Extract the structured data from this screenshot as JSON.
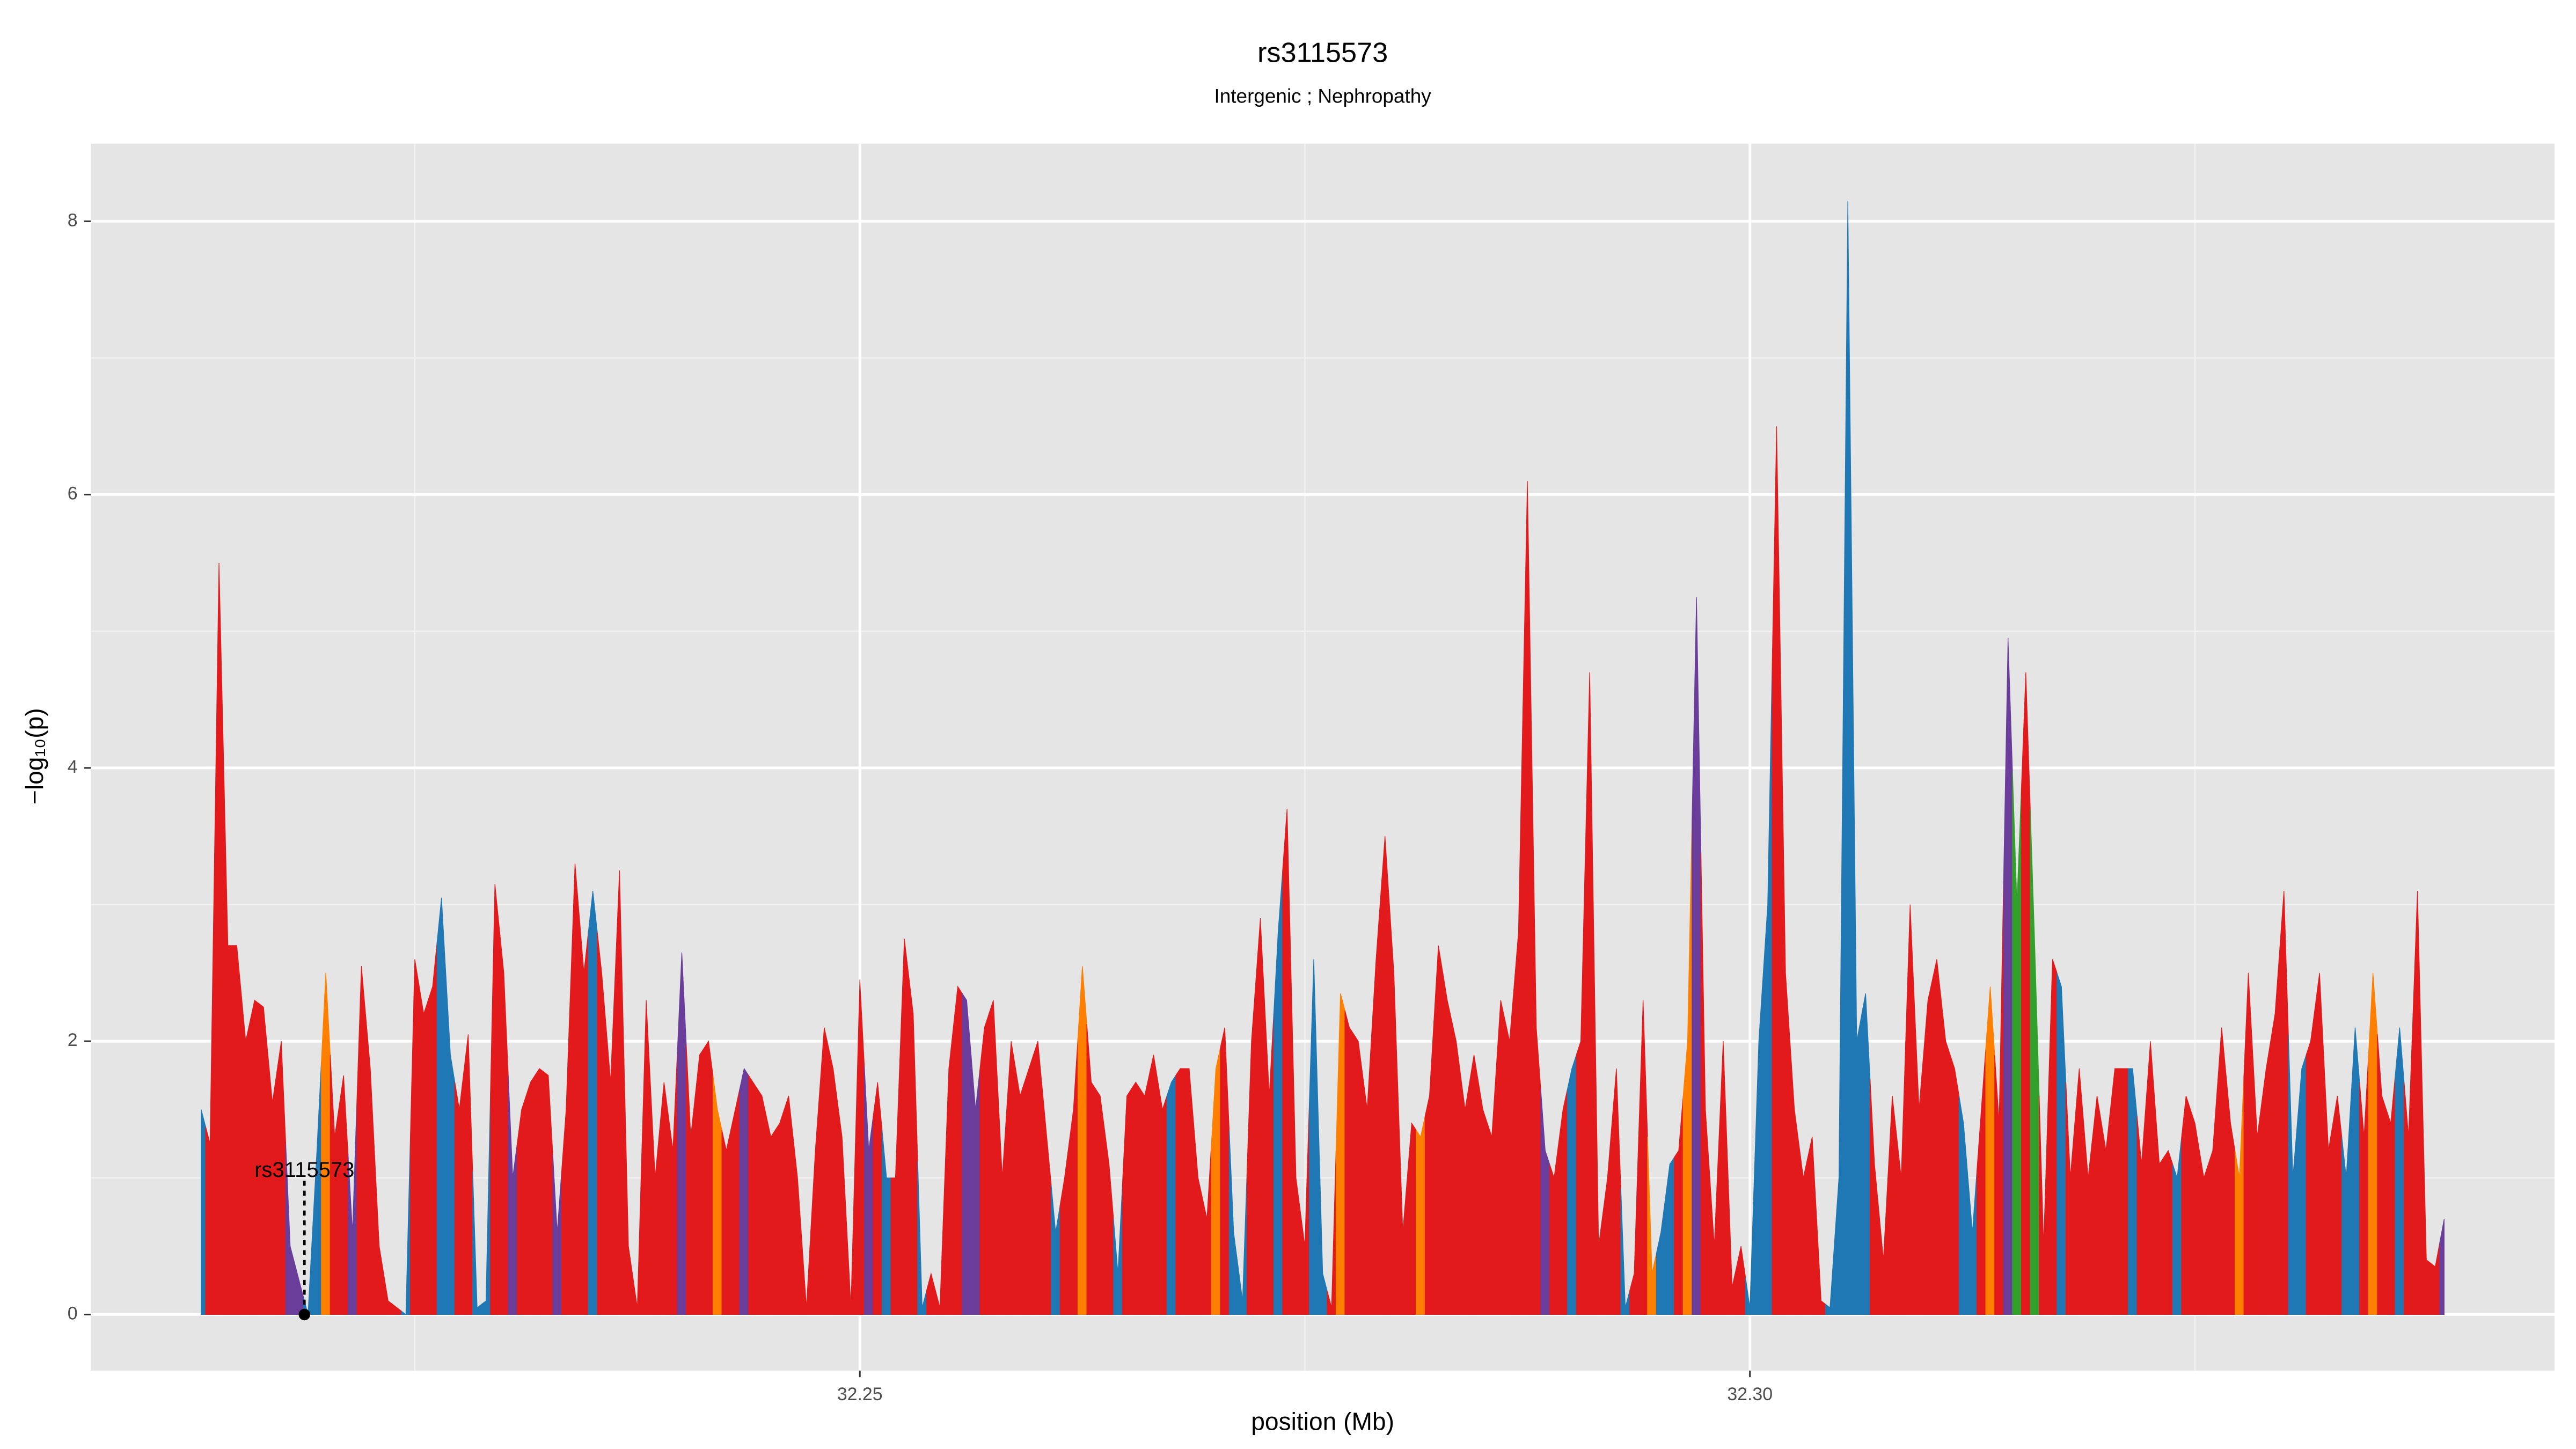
{
  "chart_data": {
    "type": "area",
    "title": "rs3115573",
    "subtitle": "Intergenic ; Nephropathy",
    "xlabel": "position (Mb)",
    "ylabel": "−log₁₀(p)",
    "xlim": [
      32.2068,
      32.3452
    ],
    "ylim": [
      -0.41,
      8.568
    ],
    "xticks": [
      {
        "value": 32.25,
        "label": "32.25"
      },
      {
        "value": 32.3,
        "label": "32.30"
      }
    ],
    "yticks": [
      0,
      2,
      4,
      6,
      8
    ],
    "xminor": [
      32.225,
      32.275,
      32.325
    ],
    "yminor": [
      1,
      3,
      5,
      7
    ],
    "grid": true,
    "annotation": {
      "text": "rs3115573",
      "x": 32.2188,
      "y": 0
    },
    "x": [
      32.213,
      32.2135,
      32.214,
      32.2145,
      32.215,
      32.2155,
      32.216,
      32.2165,
      32.217,
      32.2175,
      32.218,
      32.2185,
      32.219,
      32.2195,
      32.22,
      32.2205,
      32.221,
      32.2215,
      32.222,
      32.2225,
      32.223,
      32.2235,
      32.224,
      32.2245,
      32.225,
      32.2255,
      32.226,
      32.2265,
      32.227,
      32.2275,
      32.228,
      32.2285,
      32.229,
      32.2295,
      32.23,
      32.2305,
      32.231,
      32.2315,
      32.232,
      32.2325,
      32.233,
      32.2335,
      32.234,
      32.2345,
      32.235,
      32.2355,
      32.236,
      32.2365,
      32.237,
      32.2375,
      32.238,
      32.2385,
      32.239,
      32.2395,
      32.24,
      32.2405,
      32.241,
      32.2415,
      32.242,
      32.2425,
      32.243,
      32.2435,
      32.244,
      32.2445,
      32.245,
      32.2455,
      32.246,
      32.2465,
      32.247,
      32.2475,
      32.248,
      32.2485,
      32.249,
      32.2495,
      32.25,
      32.2505,
      32.251,
      32.2515,
      32.252,
      32.2525,
      32.253,
      32.2535,
      32.254,
      32.2545,
      32.255,
      32.2555,
      32.256,
      32.2565,
      32.257,
      32.2575,
      32.258,
      32.2585,
      32.259,
      32.2595,
      32.26,
      32.2605,
      32.261,
      32.2615,
      32.262,
      32.2625,
      32.263,
      32.2635,
      32.264,
      32.2645,
      32.265,
      32.2655,
      32.266,
      32.2665,
      32.267,
      32.2675,
      32.268,
      32.2685,
      32.269,
      32.2695,
      32.27,
      32.2705,
      32.271,
      32.2715,
      32.272,
      32.2725,
      32.273,
      32.2735,
      32.274,
      32.2745,
      32.275,
      32.2755,
      32.276,
      32.2765,
      32.277,
      32.2775,
      32.278,
      32.2785,
      32.279,
      32.2795,
      32.28,
      32.2805,
      32.281,
      32.2815,
      32.282,
      32.2825,
      32.283,
      32.2835,
      32.284,
      32.2845,
      32.285,
      32.2855,
      32.286,
      32.2865,
      32.287,
      32.2875,
      32.288,
      32.2885,
      32.289,
      32.2895,
      32.29,
      32.2905,
      32.291,
      32.2915,
      32.292,
      32.2925,
      32.293,
      32.2935,
      32.294,
      32.2945,
      32.295,
      32.2955,
      32.296,
      32.2965,
      32.297,
      32.2975,
      32.298,
      32.2985,
      32.299,
      32.2995,
      32.3,
      32.3005,
      32.301,
      32.3015,
      32.302,
      32.3025,
      32.303,
      32.3035,
      32.304,
      32.3045,
      32.305,
      32.3055,
      32.306,
      32.3065,
      32.307,
      32.3075,
      32.308,
      32.3085,
      32.309,
      32.3095,
      32.31,
      32.3105,
      32.311,
      32.3115,
      32.312,
      32.3125,
      32.313,
      32.3135,
      32.314,
      32.3145,
      32.315,
      32.3155,
      32.316,
      32.3165,
      32.317,
      32.3175,
      32.318,
      32.3185,
      32.319,
      32.3195,
      32.32,
      32.3205,
      32.321,
      32.3215,
      32.322,
      32.3225,
      32.323,
      32.3235,
      32.324,
      32.3245,
      32.325,
      32.3255,
      32.326,
      32.3265,
      32.327,
      32.3275,
      32.328,
      32.3285,
      32.329,
      32.3295,
      32.33,
      32.3305,
      32.331,
      32.3315,
      32.332,
      32.3325,
      32.333,
      32.3335,
      32.334,
      32.3345,
      32.335,
      32.3355,
      32.336,
      32.3365,
      32.337,
      32.3375,
      32.338,
      32.3385,
      32.339
    ],
    "series": [
      {
        "values": [
          1.5,
          1.25,
          5.5,
          2.7,
          2.7,
          2.0,
          2.3,
          2.25,
          1.55,
          2.0,
          0.5,
          0.25,
          0,
          1.2,
          2.5,
          1.3,
          1.75,
          0.6,
          2.55,
          1.8,
          0.5,
          0.1,
          0.05,
          0,
          2.6,
          2.2,
          2.4,
          3.05,
          1.9,
          1.5,
          2.05,
          0.05,
          0.1,
          3.15,
          2.5,
          1.0,
          1.5,
          1.7,
          1.8,
          1.75,
          0.6,
          1.5,
          3.3,
          2.5,
          3.1,
          2.5,
          1.7,
          3.25,
          0.5,
          0.05,
          2.3,
          1.0,
          1.7,
          1.2,
          2.65,
          1.3,
          1.9,
          2.0,
          1.5,
          1.2,
          1.5,
          1.8,
          1.7,
          1.6,
          1.3,
          1.4,
          1.6,
          1.0,
          0.05,
          1.2,
          2.1,
          1.8,
          1.3,
          0.05,
          2.45,
          1.2,
          1.7,
          1.0,
          1.0,
          2.75,
          2.2,
          0.05,
          0.3,
          0.05,
          1.8,
          2.4,
          2.3,
          1.5,
          2.1,
          2.3,
          1.0,
          2.0,
          1.6,
          1.8,
          2.0,
          1.3,
          0.6,
          1.0,
          1.5,
          2.55,
          1.7,
          1.6,
          1.1,
          0.3,
          1.6,
          1.7,
          1.6,
          1.9,
          1.5,
          1.7,
          1.8,
          1.8,
          1.0,
          0.7,
          1.8,
          2.1,
          0.6,
          0.1,
          2.0,
          2.9,
          1.6,
          2.8,
          3.7,
          1.0,
          0.5,
          2.6,
          0.3,
          0.05,
          2.35,
          2.1,
          2.0,
          1.5,
          2.6,
          3.5,
          2.5,
          0.6,
          1.4,
          1.3,
          1.6,
          2.7,
          2.3,
          2.0,
          1.5,
          1.9,
          1.5,
          1.3,
          2.3,
          2.0,
          2.8,
          6.1,
          2.1,
          1.2,
          1.0,
          1.5,
          1.8,
          2.0,
          4.7,
          0.5,
          1.0,
          1.8,
          0.05,
          0.3,
          2.3,
          0.3,
          0.6,
          1.1,
          1.2,
          2.0,
          5.25,
          1.5,
          0.5,
          2.0,
          0.2,
          0.5,
          0.05,
          2.0,
          3.0,
          6.5,
          2.5,
          1.5,
          1.0,
          1.3,
          0.1,
          0.05,
          1.0,
          8.15,
          2.0,
          2.35,
          1.1,
          0.4,
          1.6,
          1.0,
          3.0,
          1.5,
          2.3,
          2.6,
          2.0,
          1.8,
          1.4,
          0.6,
          1.5,
          2.4,
          1.4,
          4.95,
          3.0,
          4.7,
          2.7,
          0.5,
          2.6,
          2.4,
          1.0,
          1.8,
          1.0,
          1.6,
          1.2,
          1.8,
          1.8,
          1.8,
          1.1,
          2.0,
          1.1,
          1.2,
          1.0,
          1.6,
          1.4,
          1.0,
          1.2,
          2.1,
          1.4,
          1.0,
          2.5,
          1.3,
          1.8,
          2.2,
          3.1,
          1.0,
          1.8,
          2.0,
          2.5,
          1.2,
          1.6,
          1.0,
          2.1,
          1.3,
          2.5,
          1.6,
          1.4,
          2.1,
          1.3,
          3.1,
          0.4,
          0.35,
          0.7
        ],
        "colors": [
          "#1f78b4",
          "#e31a1c",
          "#e31a1c",
          "#e31a1c",
          "#e31a1c",
          "#e31a1c",
          "#e31a1c",
          "#e31a1c",
          "#e31a1c",
          "#e31a1c",
          "#6a3d9a",
          "#6a3d9a",
          "#1f78b4",
          "#1f78b4",
          "#ff7f00",
          "#e31a1c",
          "#e31a1c",
          "#6a3d9a",
          "#e31a1c",
          "#e31a1c",
          "#e31a1c",
          "#e31a1c",
          "#e31a1c",
          "#1f78b4",
          "#e31a1c",
          "#e31a1c",
          "#e31a1c",
          "#1f78b4",
          "#1f78b4",
          "#e31a1c",
          "#e31a1c",
          "#1f78b4",
          "#1f78b4",
          "#e31a1c",
          "#e31a1c",
          "#6a3d9a",
          "#e31a1c",
          "#e31a1c",
          "#e31a1c",
          "#e31a1c",
          "#6a3d9a",
          "#e31a1c",
          "#e31a1c",
          "#e31a1c",
          "#1f78b4",
          "#e31a1c",
          "#e31a1c",
          "#e31a1c",
          "#e31a1c",
          "#e31a1c",
          "#e31a1c",
          "#e31a1c",
          "#e31a1c",
          "#e31a1c",
          "#6a3d9a",
          "#e31a1c",
          "#e31a1c",
          "#e31a1c",
          "#ff7f00",
          "#e31a1c",
          "#e31a1c",
          "#6a3d9a",
          "#e31a1c",
          "#e31a1c",
          "#e31a1c",
          "#e31a1c",
          "#e31a1c",
          "#e31a1c",
          "#e31a1c",
          "#e31a1c",
          "#e31a1c",
          "#e31a1c",
          "#e31a1c",
          "#e31a1c",
          "#e31a1c",
          "#6a3d9a",
          "#e31a1c",
          "#1f78b4",
          "#e31a1c",
          "#e31a1c",
          "#e31a1c",
          "#1f78b4",
          "#e31a1c",
          "#e31a1c",
          "#e31a1c",
          "#e31a1c",
          "#6a3d9a",
          "#6a3d9a",
          "#e31a1c",
          "#e31a1c",
          "#e31a1c",
          "#e31a1c",
          "#e31a1c",
          "#e31a1c",
          "#e31a1c",
          "#e31a1c",
          "#1f78b4",
          "#e31a1c",
          "#e31a1c",
          "#ff7f00",
          "#e31a1c",
          "#e31a1c",
          "#e31a1c",
          "#1f78b4",
          "#e31a1c",
          "#e31a1c",
          "#e31a1c",
          "#e31a1c",
          "#e31a1c",
          "#1f78b4",
          "#e31a1c",
          "#e31a1c",
          "#e31a1c",
          "#e31a1c",
          "#ff7f00",
          "#e31a1c",
          "#1f78b4",
          "#1f78b4",
          "#e31a1c",
          "#e31a1c",
          "#e31a1c",
          "#1f78b4",
          "#e31a1c",
          "#e31a1c",
          "#e31a1c",
          "#1f78b4",
          "#1f78b4",
          "#e31a1c",
          "#ff7f00",
          "#e31a1c",
          "#e31a1c",
          "#e31a1c",
          "#e31a1c",
          "#e31a1c",
          "#e31a1c",
          "#e31a1c",
          "#e31a1c",
          "#ff7f00",
          "#e31a1c",
          "#e31a1c",
          "#e31a1c",
          "#e31a1c",
          "#e31a1c",
          "#e31a1c",
          "#e31a1c",
          "#e31a1c",
          "#e31a1c",
          "#e31a1c",
          "#e31a1c",
          "#e31a1c",
          "#e31a1c",
          "#6a3d9a",
          "#e31a1c",
          "#e31a1c",
          "#1f78b4",
          "#e31a1c",
          "#e31a1c",
          "#e31a1c",
          "#e31a1c",
          "#e31a1c",
          "#1f78b4",
          "#e31a1c",
          "#e31a1c",
          "#ff7f00",
          "#1f78b4",
          "#1f78b4",
          "#e31a1c",
          "#ff7f00",
          "#6a3d9a",
          "#e31a1c",
          "#e31a1c",
          "#e31a1c",
          "#e31a1c",
          "#e31a1c",
          "#1f78b4",
          "#1f78b4",
          "#1f78b4",
          "#e31a1c",
          "#e31a1c",
          "#e31a1c",
          "#e31a1c",
          "#e31a1c",
          "#e31a1c",
          "#1f78b4",
          "#1f78b4",
          "#1f78b4",
          "#1f78b4",
          "#1f78b4",
          "#e31a1c",
          "#e31a1c",
          "#e31a1c",
          "#e31a1c",
          "#e31a1c",
          "#e31a1c",
          "#e31a1c",
          "#e31a1c",
          "#e31a1c",
          "#e31a1c",
          "#1f78b4",
          "#1f78b4",
          "#e31a1c",
          "#ff7f00",
          "#e31a1c",
          "#6a3d9a",
          "#33a02c",
          "#e31a1c",
          "#33a02c",
          "#e31a1c",
          "#e31a1c",
          "#1f78b4",
          "#e31a1c",
          "#e31a1c",
          "#e31a1c",
          "#e31a1c",
          "#e31a1c",
          "#e31a1c",
          "#e31a1c",
          "#1f78b4",
          "#e31a1c",
          "#e31a1c",
          "#e31a1c",
          "#e31a1c",
          "#1f78b4",
          "#e31a1c",
          "#e31a1c",
          "#e31a1c",
          "#e31a1c",
          "#e31a1c",
          "#e31a1c",
          "#ff7f00",
          "#e31a1c",
          "#e31a1c",
          "#e31a1c",
          "#e31a1c",
          "#e31a1c",
          "#1f78b4",
          "#1f78b4",
          "#e31a1c",
          "#e31a1c",
          "#e31a1c",
          "#e31a1c",
          "#1f78b4",
          "#1f78b4",
          "#e31a1c",
          "#ff7f00",
          "#e31a1c",
          "#e31a1c",
          "#1f78b4",
          "#e31a1c",
          "#e31a1c",
          "#e31a1c",
          "#e31a1c",
          "#6a3d9a"
        ]
      }
    ]
  }
}
